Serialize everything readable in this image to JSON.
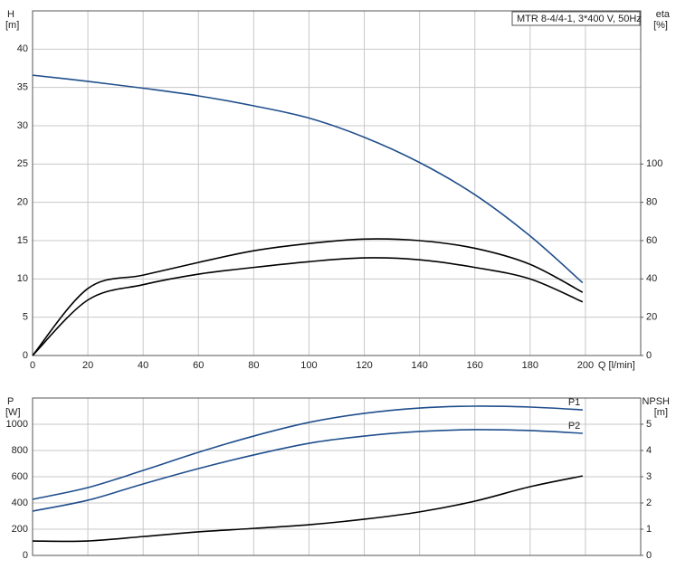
{
  "chart_data": [
    {
      "type": "line",
      "title": "MTR 8-4/4-1, 3*400 V, 50Hz",
      "ylabel": "H",
      "yunit": "[m]",
      "y2label": "eta",
      "y2unit": "[%]",
      "xlabel": "Q [l/min]",
      "xlim": [
        0,
        220
      ],
      "xticks": [
        0,
        20,
        40,
        60,
        80,
        100,
        120,
        140,
        160,
        180,
        200
      ],
      "ylim": [
        0,
        45
      ],
      "yticks": [
        0,
        5,
        10,
        15,
        20,
        25,
        30,
        35,
        40
      ],
      "y2lim": [
        0,
        180
      ],
      "y2ticks": [
        0,
        20,
        40,
        60,
        80,
        100
      ],
      "grid": true,
      "x": [
        0,
        20,
        40,
        60,
        80,
        100,
        120,
        140,
        160,
        180,
        199
      ],
      "series": [
        {
          "color": "#1f4e8c",
          "values": [
            36.6,
            35.8,
            34.9,
            33.9,
            32.6,
            31,
            28.5,
            25.2,
            21,
            15.6,
            9.5
          ]
        },
        {
          "color": "#000000",
          "axis": "y2",
          "values": [
            0,
            35,
            42,
            48.6,
            54.7,
            58.5,
            60.8,
            60,
            56,
            47.6,
            33
          ]
        },
        {
          "color": "#000000",
          "axis": "y2",
          "values": [
            0,
            29,
            37,
            42.5,
            46,
            49,
            51,
            50,
            46,
            40,
            28
          ]
        }
      ]
    },
    {
      "type": "line",
      "ylabel": "P",
      "yunit": "[W]",
      "y2label": "NPSH",
      "y2unit": "[m]",
      "xlim": [
        0,
        220
      ],
      "xticks": [
        0,
        20,
        40,
        60,
        80,
        100,
        120,
        140,
        160,
        180,
        200
      ],
      "ylim": [
        0,
        1200
      ],
      "yticks": [
        0,
        200,
        400,
        600,
        800,
        1000
      ],
      "y2lim": [
        0,
        6
      ],
      "y2ticks": [
        0,
        1,
        2,
        3,
        4,
        5
      ],
      "grid": true,
      "x": [
        0,
        20,
        40,
        60,
        80,
        100,
        120,
        140,
        160,
        180,
        199
      ],
      "series": [
        {
          "name": "P1",
          "color": "#1f4e8c",
          "values": [
            428,
            517,
            648,
            786,
            910,
            1014,
            1083,
            1124,
            1138,
            1131,
            1110
          ]
        },
        {
          "name": "P2",
          "color": "#1f4e8c",
          "values": [
            338,
            421,
            545,
            662,
            766,
            855,
            910,
            945,
            959,
            952,
            931
          ]
        },
        {
          "color": "#000000",
          "axis": "y2",
          "values": [
            0.55,
            0.55,
            0.72,
            0.9,
            1.03,
            1.17,
            1.38,
            1.66,
            2.07,
            2.62,
            3.03
          ]
        }
      ]
    }
  ]
}
